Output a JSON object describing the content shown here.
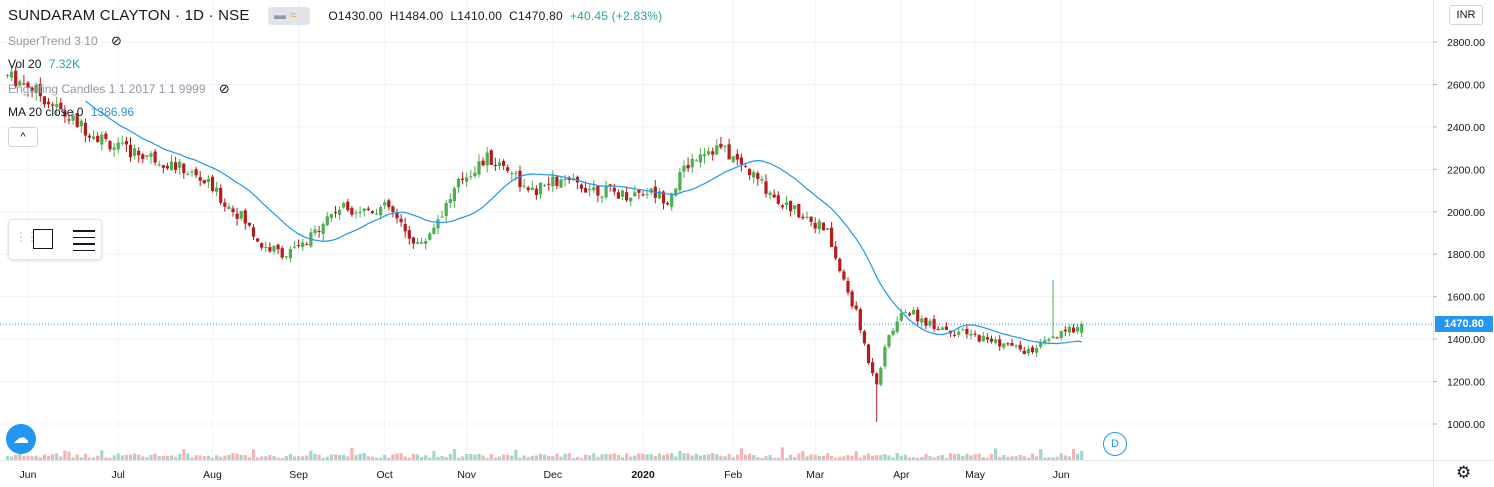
{
  "header": {
    "symbol": "SUNDARAM CLAYTON · 1D · NSE",
    "open": "O1430.00",
    "high": "H1484.00",
    "low": "L1410.00",
    "close": "C1470.80",
    "change": "+40.45 (+2.83%)"
  },
  "indicators": {
    "supertrend": "SuperTrend 3 10",
    "vol_label": "Vol 20",
    "vol_value": "7.32K",
    "engulfing": "Engulfing Candles 1 1 2017 1 1 9999",
    "ma_label": "MA 20 close 0",
    "ma_value": "1386.96"
  },
  "controls": {
    "collapse_icon": "^",
    "currency": "INR",
    "dividend_marker": "D"
  },
  "current_price_label": "1470.80",
  "colors": {
    "up": "#26a69a",
    "down": "#ef5350",
    "candle_up": "#4caf50",
    "candle_down": "#b71c1c",
    "ma": "#2196f3",
    "vol_up": "#a5d6c8",
    "vol_down": "#f5b5b3"
  },
  "chart_data": {
    "type": "candlestick",
    "y_ticks": [
      "2800.00",
      "2600.00",
      "2400.00",
      "2200.00",
      "2000.00",
      "1800.00",
      "1600.00",
      "1400.00",
      "1200.00",
      "1000.00"
    ],
    "ylim": [
      940,
      2880
    ],
    "x_ticks": [
      {
        "label": "Jun",
        "day": 0
      },
      {
        "label": "Jul",
        "day": 22
      },
      {
        "label": "Aug",
        "day": 45
      },
      {
        "label": "Sep",
        "day": 66
      },
      {
        "label": "Oct",
        "day": 87
      },
      {
        "label": "Nov",
        "day": 107
      },
      {
        "label": "Dec",
        "day": 128
      },
      {
        "label": "2020",
        "day": 150
      },
      {
        "label": "Feb",
        "day": 172
      },
      {
        "label": "Mar",
        "day": 192
      },
      {
        "label": "Apr",
        "day": 213
      },
      {
        "label": "May",
        "day": 231
      },
      {
        "label": "Jun",
        "day": 252
      }
    ],
    "anchors": [
      [
        -5,
        2640
      ],
      [
        0,
        2600
      ],
      [
        5,
        2520
      ],
      [
        10,
        2440
      ],
      [
        15,
        2380
      ],
      [
        22,
        2300
      ],
      [
        30,
        2260
      ],
      [
        38,
        2200
      ],
      [
        44,
        2130
      ],
      [
        48,
        2040
      ],
      [
        52,
        1980
      ],
      [
        57,
        1840
      ],
      [
        63,
        1800
      ],
      [
        68,
        1850
      ],
      [
        72,
        1960
      ],
      [
        76,
        2020
      ],
      [
        82,
        2010
      ],
      [
        88,
        2020
      ],
      [
        92,
        1900
      ],
      [
        96,
        1840
      ],
      [
        100,
        1970
      ],
      [
        106,
        2160
      ],
      [
        112,
        2250
      ],
      [
        118,
        2200
      ],
      [
        122,
        2080
      ],
      [
        128,
        2140
      ],
      [
        134,
        2130
      ],
      [
        140,
        2100
      ],
      [
        146,
        2080
      ],
      [
        151,
        2100
      ],
      [
        156,
        2060
      ],
      [
        160,
        2200
      ],
      [
        164,
        2290
      ],
      [
        169,
        2300
      ],
      [
        174,
        2220
      ],
      [
        178,
        2150
      ],
      [
        184,
        2040
      ],
      [
        190,
        1980
      ],
      [
        195,
        1900
      ],
      [
        198,
        1720
      ],
      [
        202,
        1520
      ],
      [
        205,
        1300
      ],
      [
        207,
        1200
      ],
      [
        210,
        1420
      ],
      [
        214,
        1540
      ],
      [
        219,
        1480
      ],
      [
        224,
        1450
      ],
      [
        229,
        1420
      ],
      [
        234,
        1400
      ],
      [
        239,
        1370
      ],
      [
        244,
        1340
      ],
      [
        248,
        1380
      ],
      [
        252,
        1420
      ],
      [
        255,
        1450
      ],
      [
        257,
        1470.8
      ]
    ],
    "ma20_last": 1386.96,
    "last_close": 1470.8
  }
}
